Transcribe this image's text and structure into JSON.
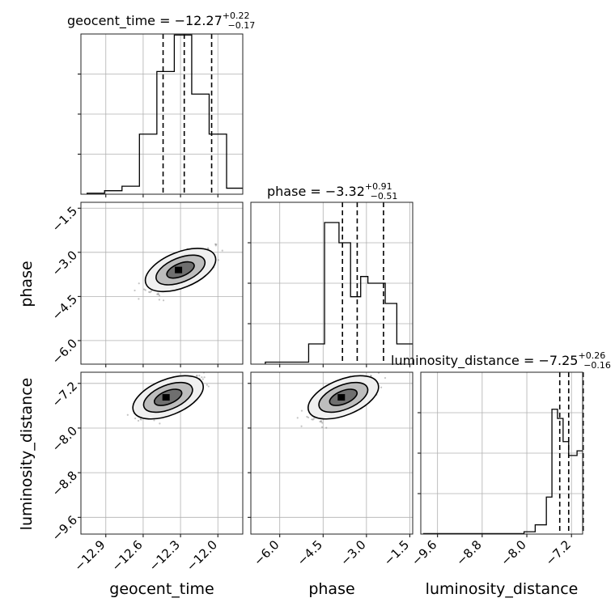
{
  "chart_data": [
    {
      "type": "histogram",
      "panel": "geocent_time-1d",
      "title": {
        "param": "geocent_time",
        "median": "−12.27",
        "plus": "+0.22",
        "minus": "−0.17"
      },
      "x_range": [
        -13.1,
        -11.8
      ],
      "y_range": [
        0,
        0.32
      ],
      "x_ticks": [
        -12.9,
        -12.6,
        -12.3,
        -12.0
      ],
      "bins": [
        -13.05,
        -12.91,
        -12.77,
        -12.63,
        -12.49,
        -12.35,
        -12.21,
        -12.07,
        -11.93,
        -11.8
      ],
      "counts": [
        0.002,
        0.007,
        0.016,
        0.12,
        0.245,
        0.318,
        0.2,
        0.12,
        0.012
      ],
      "quantiles": [
        -12.44,
        -12.27,
        -12.05
      ],
      "grid": true
    },
    {
      "type": "histogram",
      "panel": "phase-1d",
      "title": {
        "param": "phase",
        "median": "−3.32",
        "plus": "+0.91",
        "minus": "−0.51"
      },
      "x_range": [
        -7.0,
        -1.4
      ],
      "y_range": [
        0,
        0.24
      ],
      "x_ticks": [
        -6.0,
        -4.5,
        -3.0,
        -1.5
      ],
      "bins": [
        -6.5,
        -5.0,
        -4.45,
        -3.95,
        -3.55,
        -3.2,
        -2.95,
        -2.35,
        -1.95,
        -1.4
      ],
      "counts": [
        0.003,
        0.03,
        0.21,
        0.18,
        0.1,
        0.13,
        0.12,
        0.09,
        0.03
      ],
      "quantiles": [
        -3.83,
        -3.32,
        -2.41
      ],
      "grid": true
    },
    {
      "type": "histogram",
      "panel": "luminosity_distance-1d",
      "title": {
        "param": "luminosity_distance",
        "median": "−7.25",
        "plus": "+0.26",
        "minus": "−0.16"
      },
      "x_range": [
        -9.9,
        -7.0
      ],
      "y_range": [
        0,
        0.35
      ],
      "x_ticks": [
        -9.6,
        -8.8,
        -8.0,
        -7.2
      ],
      "bins": [
        -9.85,
        -8.05,
        -7.85,
        -7.65,
        -7.55,
        -7.45,
        -7.35,
        -7.25,
        -7.1,
        -7.0
      ],
      "counts": [
        0.001,
        0.005,
        0.02,
        0.08,
        0.27,
        0.25,
        0.2,
        0.17,
        0.18
      ],
      "quantiles": [
        -7.41,
        -7.25,
        -6.99
      ],
      "grid": true
    },
    {
      "type": "scatter",
      "panel": "geocent_time-vs-phase",
      "x_range": [
        -13.1,
        -11.8
      ],
      "y_range": [
        -6.8,
        -1.3
      ],
      "x_ticks": [
        -12.9,
        -12.6,
        -12.3,
        -12.0
      ],
      "y_ticks": [
        -6.0,
        -4.5,
        -3.0,
        -1.5
      ],
      "ylabel": "phase",
      "density_core": {
        "x": -12.3,
        "y": -3.6
      }
    },
    {
      "type": "scatter",
      "panel": "geocent_time-vs-luminosity_distance",
      "x_range": [
        -13.1,
        -11.8
      ],
      "y_range": [
        -9.9,
        -7.0
      ],
      "x_ticks": [
        -12.9,
        -12.6,
        -12.3,
        -12.0
      ],
      "y_ticks": [
        -9.6,
        -8.8,
        -8.0,
        -7.2
      ],
      "xlabel": "geocent_time",
      "ylabel": "luminosity_distance",
      "density_core": {
        "x": -12.4,
        "y": -7.45
      }
    },
    {
      "type": "scatter",
      "panel": "phase-vs-luminosity_distance",
      "x_range": [
        -7.0,
        -1.4
      ],
      "y_range": [
        -9.9,
        -7.0
      ],
      "x_ticks": [
        -6.0,
        -4.5,
        -3.0,
        -1.5
      ],
      "y_ticks": [
        -9.6,
        -8.8,
        -8.0,
        -7.2
      ],
      "xlabel": "phase",
      "density_core": {
        "x": -3.8,
        "y": -7.45
      }
    }
  ],
  "colors": {
    "contour": "#000000",
    "hist": "#000000",
    "points": "#555555",
    "grid": "#b0b0b0"
  }
}
